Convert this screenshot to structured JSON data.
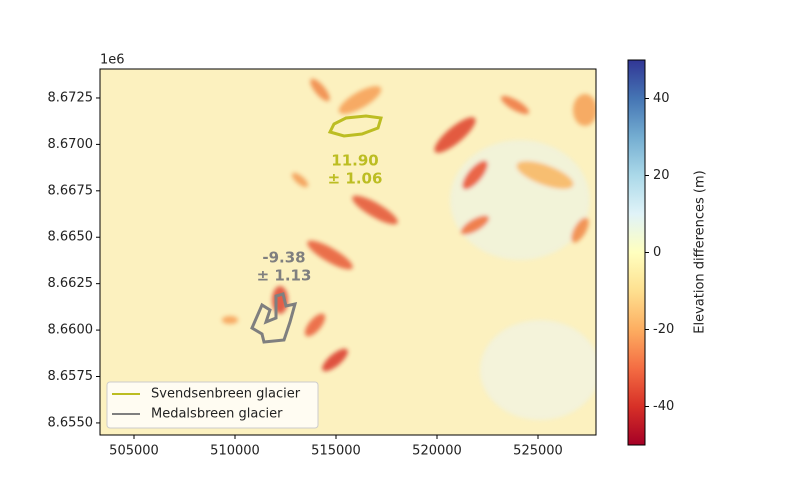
{
  "chart_data": {
    "type": "map",
    "xlim": [
      503317,
      527871
    ],
    "xticks": [
      505000,
      510000,
      515000,
      520000,
      525000
    ],
    "ylim": [
      8.65435,
      8.67406
    ],
    "yticks": [
      {
        "value": 8.655,
        "label": "8.6550"
      },
      8.6575,
      {
        "value": 8.66,
        "label": "8.6600"
      },
      8.6625,
      {
        "value": 8.665,
        "label": "8.6650"
      },
      8.6675,
      {
        "value": 8.67,
        "label": "8.6700"
      },
      8.6725
    ],
    "y_offset_label": "1e6",
    "colorbar": {
      "label": "Elevation differences (m)",
      "lim": [
        -50,
        50
      ],
      "ticks": [
        -40,
        -20,
        0,
        20,
        40
      ],
      "colormap": "RdYlBu"
    },
    "annotations": [
      {
        "lines": [
          "11.90",
          "± 1.06"
        ],
        "color": "#bcbd22"
      },
      {
        "lines": [
          "-9.38",
          "± 1.13"
        ],
        "color": "#7f7f7f"
      }
    ],
    "series": [
      {
        "name": "Svendsenbreen glacier",
        "color": "#bcbd22"
      },
      {
        "name": "Medalsbreen glacier",
        "color": "#7f7f7f"
      }
    ],
    "legend": "lower left"
  }
}
